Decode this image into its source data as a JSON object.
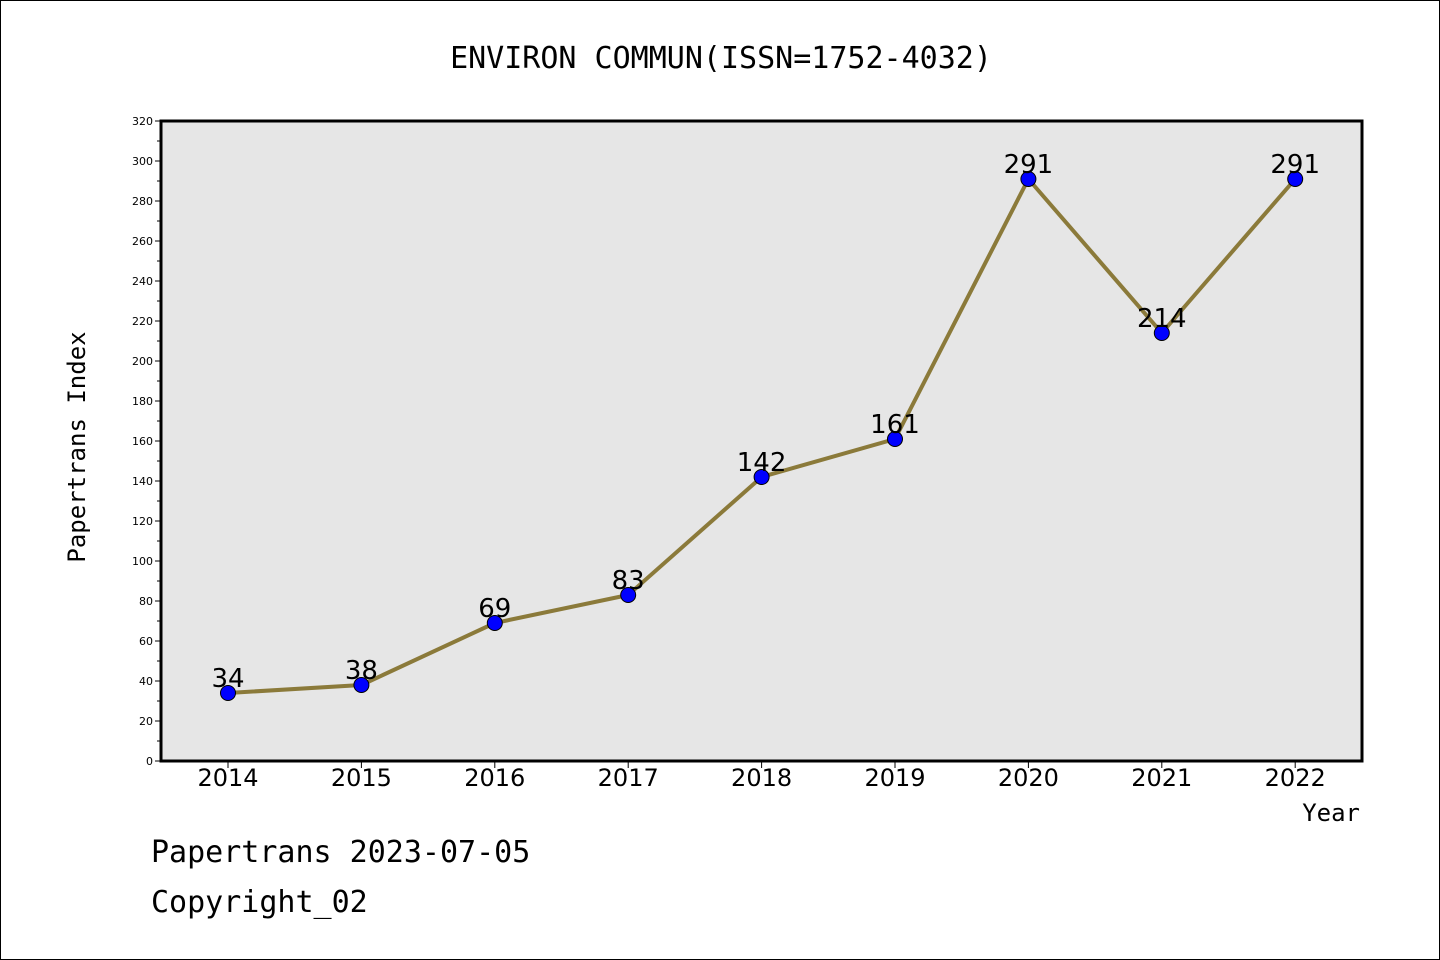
{
  "chart_data": {
    "type": "line",
    "title": "ENVIRON COMMUN(ISSN=1752-4032)",
    "xlabel": "Year",
    "ylabel": "Papertrans Index",
    "categories": [
      "2014",
      "2015",
      "2016",
      "2017",
      "2018",
      "2019",
      "2020",
      "2021",
      "2022"
    ],
    "values": [
      34,
      38,
      69,
      83,
      142,
      161,
      291,
      214,
      291
    ],
    "ylim": [
      0,
      320
    ],
    "yticks": [
      0,
      20,
      40,
      60,
      80,
      100,
      120,
      140,
      160,
      180,
      200,
      220,
      240,
      260,
      280,
      300,
      320
    ],
    "grid": false,
    "colors": {
      "line": "#8b7a3a",
      "marker": "#0000ff",
      "plot_bg": "#e6e6e6"
    }
  },
  "footer": {
    "line1": "Papertrans 2023-07-05",
    "line2": "Copyright_02"
  }
}
